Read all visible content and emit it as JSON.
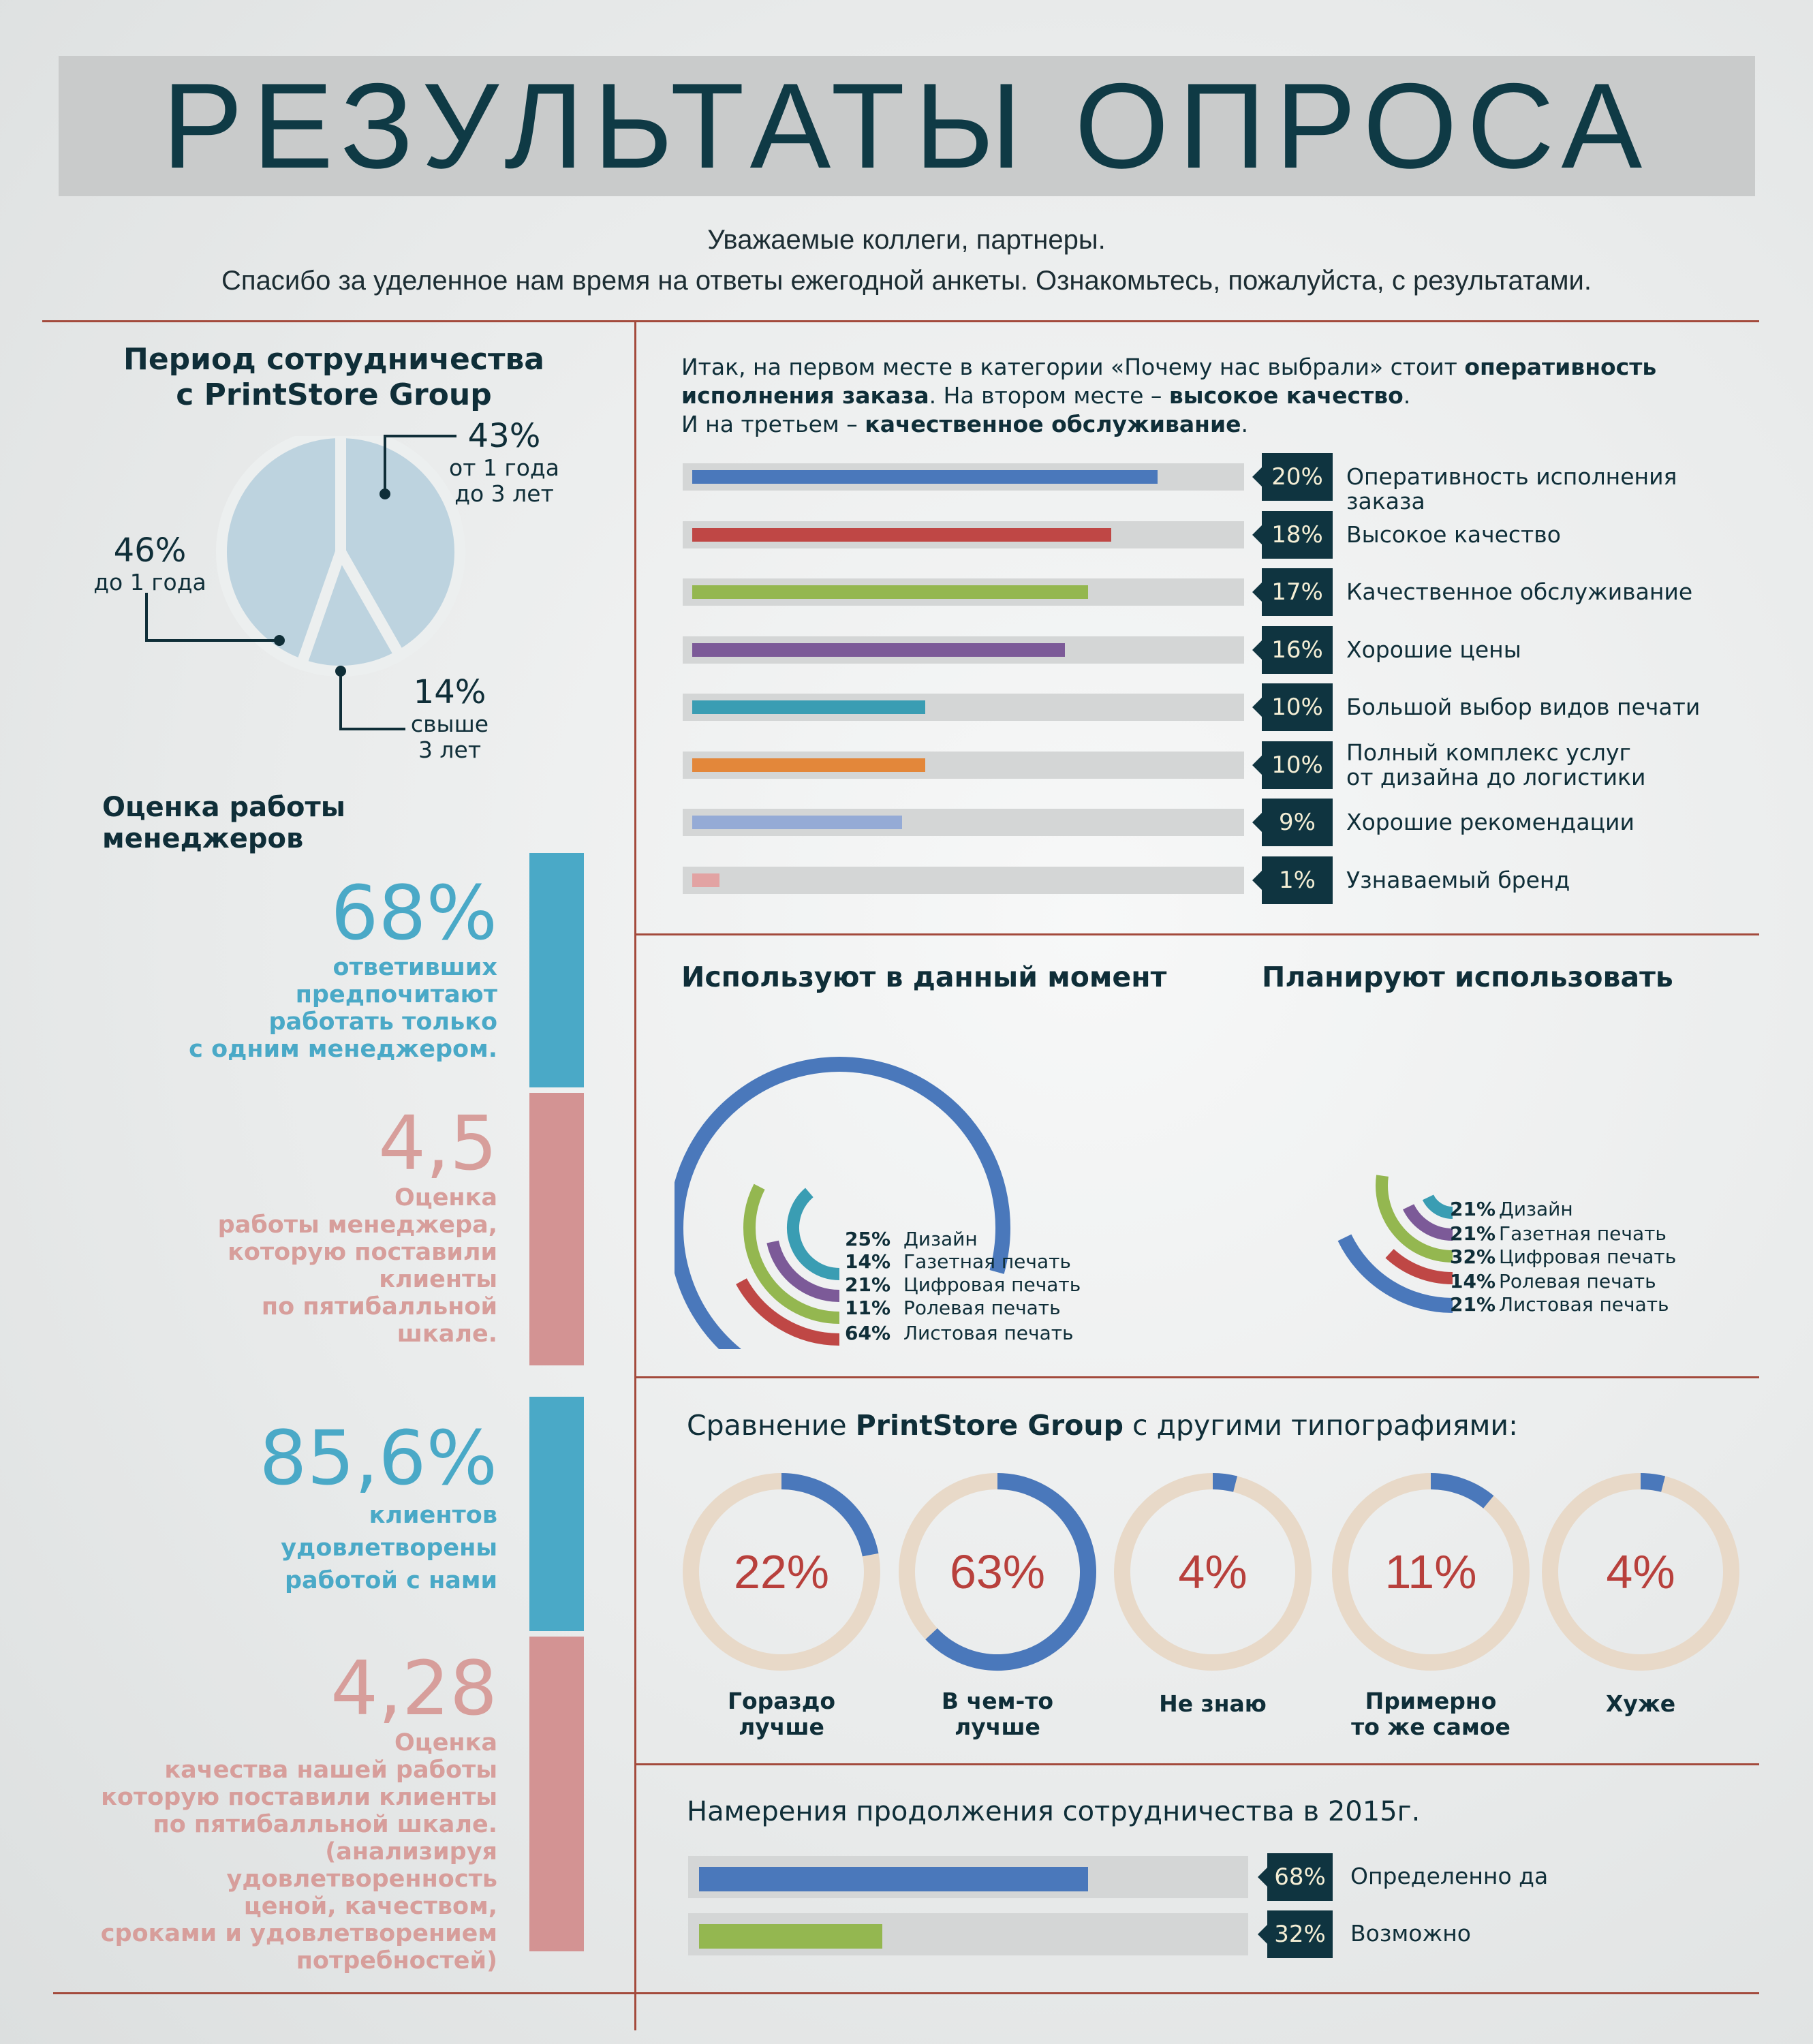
{
  "title": "РЕЗУЛЬТАТЫ ОПРОСА",
  "intro": {
    "line1": "Уважаемые коллеги, партнеры.",
    "line2": "Спасибо за уделенное нам время на ответы ежегодной анкеты. Ознакомьтесь, пожалуйста, с результатами."
  },
  "period": {
    "title_line1": "Период сотрудничества",
    "title_line2": "с PrintStore Group",
    "slices": [
      {
        "pct": "43%",
        "label1": "от 1 года",
        "label2": "до 3 лет"
      },
      {
        "pct": "46%",
        "label1": "до 1 года",
        "label2": ""
      },
      {
        "pct": "14%",
        "label1": "свыше",
        "label2": "3 лет"
      }
    ]
  },
  "managers": {
    "title": "Оценка работы менеджеров",
    "stats": [
      {
        "big": "68%",
        "lines": [
          "ответивших",
          "предпочитают",
          "работать только",
          "с одним менеджером."
        ]
      },
      {
        "big": "4,5",
        "lines": [
          "Оценка",
          "работы менеджера,",
          "которую поставили",
          "клиенты",
          "по пятибалльной",
          "шкале."
        ]
      },
      {
        "big": "85,6%",
        "lines": [
          "клиентов",
          "удовлетворены",
          "работой с нами"
        ]
      },
      {
        "big": "4,28",
        "lines": [
          "Оценка",
          "качества нашей работы",
          "которую поставили клиенты",
          "по пятибалльной шкале.",
          "(анализируя удовлетворенность",
          "ценой,  качеством,",
          "сроками и удовлетворением",
          "потребностей)"
        ]
      }
    ]
  },
  "why": {
    "text_a": "Итак, на первом месте в категории «Почему нас выбрали» стоит ",
    "text_b": "оперативность",
    "text_c": "исполнения заказа",
    "text_d": ". На втором месте – ",
    "text_e": "высокое качество",
    "text_f": ".",
    "text_g": "И на третьем – ",
    "text_h": "качественное обслуживание",
    "text_i": "."
  },
  "compare": {
    "title_a": "Сравнение ",
    "title_b": "PrintStore Group",
    "title_c": " с другими типографиями:"
  },
  "intent": {
    "title": "Намерения продолжения сотрудничества в 2015г."
  },
  "colors": {
    "blue": "#4a78bb",
    "red": "#bf4745",
    "green": "#94b750",
    "purple": "#7c5a98",
    "teal": "#3a9db3",
    "orange": "#e3873a",
    "lightblue": "#95abd6",
    "pink": "#e2a3a3",
    "ring_bg": "#e8d9c8",
    "dark": "#0f3440"
  },
  "chart_data": [
    {
      "type": "pie",
      "title": "Период сотрудничества с PrintStore Group",
      "categories": [
        "от 1 года до 3 лет",
        "до 1 года",
        "свыше 3 лет"
      ],
      "values": [
        43,
        46,
        14
      ]
    },
    {
      "type": "bar",
      "title": "Почему нас выбрали",
      "categories": [
        "Оперативность исполнения заказа",
        "Высокое качество",
        "Качественное обслуживание",
        "Хорошие цены",
        "Большой выбор видов печати",
        "Полный комплекс услуг от дизайна до логистики",
        "Хорошие рекомендации",
        "Узнаваемый бренд"
      ],
      "values": [
        20,
        18,
        17,
        16,
        10,
        10,
        9,
        1
      ],
      "labels": [
        "20%",
        "18%",
        "17%",
        "16%",
        "10%",
        "10%",
        "9%",
        "1%"
      ],
      "label_lines": [
        [
          "Оперативность исполнения заказа"
        ],
        [
          "Высокое качество"
        ],
        [
          "Качественное обслуживание"
        ],
        [
          "Хорошие цены"
        ],
        [
          "Большой выбор видов печати"
        ],
        [
          "Полный комплекс услуг",
          "от дизайна до логистики"
        ],
        [
          "Хорошие рекомендации"
        ],
        [
          "Узнаваемый бренд"
        ]
      ],
      "colors": [
        "#4a78bb",
        "#bf4745",
        "#94b750",
        "#7c5a98",
        "#3a9db3",
        "#e3873a",
        "#95abd6",
        "#e2a3a3"
      ]
    },
    {
      "type": "bar",
      "title": "Используют в данный момент",
      "categories": [
        "Дизайн",
        "Газетная печать",
        "Цифровая печать",
        "Ролевая печать",
        "Листовая печать"
      ],
      "values": [
        25,
        14,
        21,
        11,
        64
      ],
      "labels": [
        "25%",
        "14%",
        "21%",
        "11%",
        "64%"
      ],
      "colors": [
        "#3a9db3",
        "#7c5a98",
        "#94b750",
        "#bf4745",
        "#4a78bb"
      ]
    },
    {
      "type": "bar",
      "title": "Планируют использовать",
      "categories": [
        "Дизайн",
        "Газетная печать",
        "Цифровая печать",
        "Ролевая печать",
        "Листовая печать"
      ],
      "values": [
        21,
        21,
        32,
        14,
        21
      ],
      "labels": [
        "21%",
        "21%",
        "32%",
        "14%",
        "21%"
      ],
      "colors": [
        "#3a9db3",
        "#7c5a98",
        "#94b750",
        "#bf4745",
        "#4a78bb"
      ]
    },
    {
      "type": "pie",
      "title": "Сравнение PrintStore Group с другими типографиями:",
      "categories": [
        "Гораздо лучше",
        "В чем-то лучше",
        "Не знаю",
        "Примерно то же самое",
        "Хуже"
      ],
      "values": [
        22,
        63,
        4,
        11,
        4
      ],
      "labels": [
        "22%",
        "63%",
        "4%",
        "11%",
        "4%"
      ],
      "label_lines": [
        [
          "Гораздо",
          "лучше"
        ],
        [
          "В чем-то",
          "лучше"
        ],
        [
          "Не знаю"
        ],
        [
          "Примерно",
          "то же самое"
        ],
        [
          "Хуже"
        ]
      ]
    },
    {
      "type": "bar",
      "title": "Намерения продолжения сотрудничества в 2015г.",
      "categories": [
        "Определенно да",
        "Возможно"
      ],
      "values": [
        68,
        32
      ],
      "labels": [
        "68%",
        "32%"
      ],
      "colors": [
        "#4a78bb",
        "#94b750"
      ]
    }
  ]
}
